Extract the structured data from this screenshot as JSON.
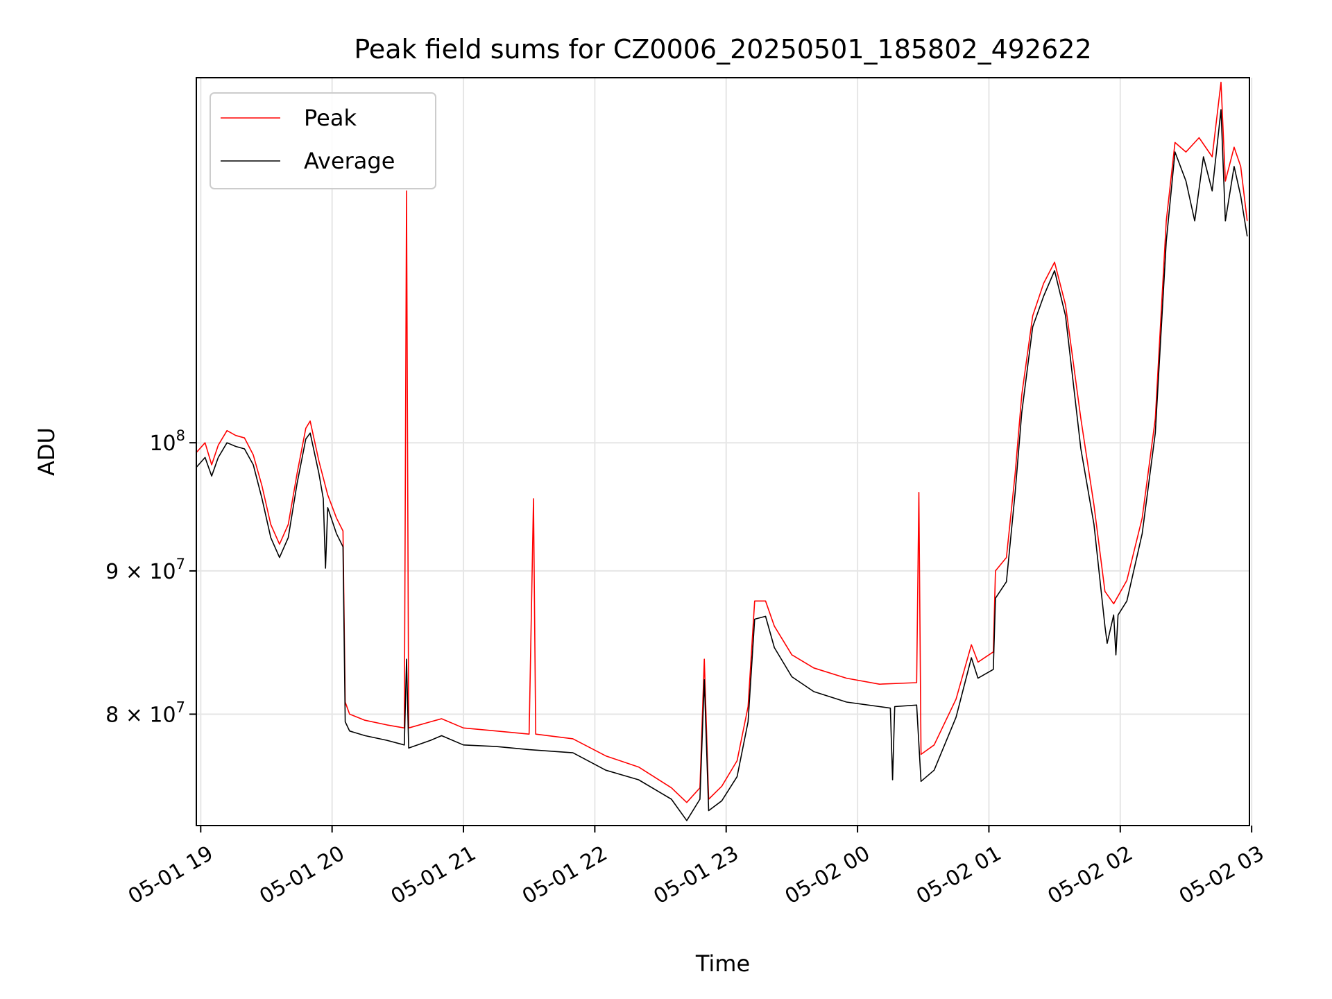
{
  "chart_data": {
    "type": "line",
    "title": "Peak field sums for CZ0006_20250501_185802_492622",
    "xlabel": "Time",
    "ylabel": "ADU",
    "yscale": "log",
    "grid": true,
    "legend_position": "top-left",
    "xlim": [
      "2025-05-01 18:58",
      "2025-05-02 02:59"
    ],
    "ylim": [
      73000000,
      135000000
    ],
    "x_ticks": [
      {
        "t": "2025-05-01 19:00",
        "label": "05-01 19"
      },
      {
        "t": "2025-05-01 20:00",
        "label": "05-01 20"
      },
      {
        "t": "2025-05-01 21:00",
        "label": "05-01 21"
      },
      {
        "t": "2025-05-01 22:00",
        "label": "05-01 22"
      },
      {
        "t": "2025-05-01 23:00",
        "label": "05-01 23"
      },
      {
        "t": "2025-05-02 00:00",
        "label": "05-02 00"
      },
      {
        "t": "2025-05-02 01:00",
        "label": "05-02 01"
      },
      {
        "t": "2025-05-02 02:00",
        "label": "05-02 02"
      },
      {
        "t": "2025-05-02 03:00",
        "label": "05-02 03"
      }
    ],
    "y_ticks": [
      {
        "value": 80000000,
        "label": "8 × 10",
        "exp": "7"
      },
      {
        "value": 90000000,
        "label": "9 × 10",
        "exp": "7"
      },
      {
        "value": 100000000,
        "label": "10",
        "exp": "8"
      }
    ],
    "series": [
      {
        "name": "Peak",
        "color": "#ff0000",
        "points": [
          [
            "2025-05-01 18:58",
            99200000
          ],
          [
            "2025-05-01 19:02",
            100000000
          ],
          [
            "2025-05-01 19:05",
            98200000
          ],
          [
            "2025-05-01 19:08",
            99800000
          ],
          [
            "2025-05-01 19:12",
            101000000
          ],
          [
            "2025-05-01 19:16",
            100600000
          ],
          [
            "2025-05-01 19:20",
            100400000
          ],
          [
            "2025-05-01 19:24",
            99000000
          ],
          [
            "2025-05-01 19:28",
            96500000
          ],
          [
            "2025-05-01 19:32",
            93500000
          ],
          [
            "2025-05-01 19:36",
            92000000
          ],
          [
            "2025-05-01 19:40",
            93500000
          ],
          [
            "2025-05-01 19:44",
            97500000
          ],
          [
            "2025-05-01 19:48",
            101200000
          ],
          [
            "2025-05-01 19:50",
            101800000
          ],
          [
            "2025-05-01 19:54",
            98500000
          ],
          [
            "2025-05-01 19:58",
            95800000
          ],
          [
            "2025-05-01 20:02",
            94000000
          ],
          [
            "2025-05-01 20:05",
            93000000
          ],
          [
            "2025-05-01 20:06",
            80800000
          ],
          [
            "2025-05-01 20:08",
            80000000
          ],
          [
            "2025-05-01 20:15",
            79600000
          ],
          [
            "2025-05-01 20:25",
            79300000
          ],
          [
            "2025-05-01 20:33",
            79100000
          ],
          [
            "2025-05-01 20:34",
            123000000
          ],
          [
            "2025-05-01 20:35",
            79100000
          ],
          [
            "2025-05-01 20:45",
            79500000
          ],
          [
            "2025-05-01 20:50",
            79700000
          ],
          [
            "2025-05-01 21:00",
            79100000
          ],
          [
            "2025-05-01 21:15",
            78900000
          ],
          [
            "2025-05-01 21:30",
            78700000
          ],
          [
            "2025-05-01 21:32",
            95500000
          ],
          [
            "2025-05-01 21:33",
            78700000
          ],
          [
            "2025-05-01 21:50",
            78400000
          ],
          [
            "2025-05-01 22:05",
            77300000
          ],
          [
            "2025-05-01 22:20",
            76600000
          ],
          [
            "2025-05-01 22:35",
            75300000
          ],
          [
            "2025-05-01 22:42",
            74400000
          ],
          [
            "2025-05-01 22:48",
            75300000
          ],
          [
            "2025-05-01 22:50",
            83700000
          ],
          [
            "2025-05-01 22:52",
            74600000
          ],
          [
            "2025-05-01 22:58",
            75400000
          ],
          [
            "2025-05-01 23:05",
            77000000
          ],
          [
            "2025-05-01 23:10",
            80500000
          ],
          [
            "2025-05-01 23:13",
            87800000
          ],
          [
            "2025-05-01 23:18",
            87800000
          ],
          [
            "2025-05-01 23:22",
            86000000
          ],
          [
            "2025-05-01 23:30",
            84000000
          ],
          [
            "2025-05-01 23:40",
            83100000
          ],
          [
            "2025-05-01 23:55",
            82400000
          ],
          [
            "2025-05-02 00:10",
            82000000
          ],
          [
            "2025-05-02 00:27",
            82100000
          ],
          [
            "2025-05-02 00:28",
            96000000
          ],
          [
            "2025-05-02 00:29",
            77400000
          ],
          [
            "2025-05-02 00:35",
            78000000
          ],
          [
            "2025-05-02 00:45",
            81000000
          ],
          [
            "2025-05-02 00:52",
            84700000
          ],
          [
            "2025-05-02 00:55",
            83500000
          ],
          [
            "2025-05-02 01:02",
            84200000
          ],
          [
            "2025-05-02 01:03",
            90000000
          ],
          [
            "2025-05-02 01:08",
            91000000
          ],
          [
            "2025-05-02 01:12",
            97500000
          ],
          [
            "2025-05-02 01:15",
            104000000
          ],
          [
            "2025-05-02 01:20",
            111000000
          ],
          [
            "2025-05-02 01:25",
            114000000
          ],
          [
            "2025-05-02 01:30",
            116000000
          ],
          [
            "2025-05-02 01:35",
            112000000
          ],
          [
            "2025-05-02 01:42",
            102000000
          ],
          [
            "2025-05-02 01:48",
            95000000
          ],
          [
            "2025-05-02 01:53",
            88500000
          ],
          [
            "2025-05-02 01:57",
            87600000
          ],
          [
            "2025-05-02 02:03",
            89300000
          ],
          [
            "2025-05-02 02:10",
            94000000
          ],
          [
            "2025-05-02 02:16",
            102000000
          ],
          [
            "2025-05-02 02:21",
            120000000
          ],
          [
            "2025-05-02 02:25",
            128000000
          ],
          [
            "2025-05-02 02:30",
            127000000
          ],
          [
            "2025-05-02 02:36",
            128500000
          ],
          [
            "2025-05-02 02:42",
            126500000
          ],
          [
            "2025-05-02 02:46",
            134500000
          ],
          [
            "2025-05-02 02:48",
            124000000
          ],
          [
            "2025-05-02 02:52",
            127500000
          ],
          [
            "2025-05-02 02:55",
            125500000
          ],
          [
            "2025-05-02 02:58",
            120000000
          ]
        ]
      },
      {
        "name": "Average",
        "color": "#000000",
        "points": [
          [
            "2025-05-01 18:58",
            98000000
          ],
          [
            "2025-05-01 19:02",
            98800000
          ],
          [
            "2025-05-01 19:05",
            97300000
          ],
          [
            "2025-05-01 19:08",
            98800000
          ],
          [
            "2025-05-01 19:12",
            100000000
          ],
          [
            "2025-05-01 19:16",
            99700000
          ],
          [
            "2025-05-01 19:20",
            99500000
          ],
          [
            "2025-05-01 19:24",
            98200000
          ],
          [
            "2025-05-01 19:28",
            95500000
          ],
          [
            "2025-05-01 19:32",
            92500000
          ],
          [
            "2025-05-01 19:36",
            91000000
          ],
          [
            "2025-05-01 19:40",
            92500000
          ],
          [
            "2025-05-01 19:44",
            96700000
          ],
          [
            "2025-05-01 19:48",
            100300000
          ],
          [
            "2025-05-01 19:50",
            100800000
          ],
          [
            "2025-05-01 19:54",
            97500000
          ],
          [
            "2025-05-01 19:56",
            95500000
          ],
          [
            "2025-05-01 19:57",
            90200000
          ],
          [
            "2025-05-01 19:58",
            94800000
          ],
          [
            "2025-05-01 20:02",
            92800000
          ],
          [
            "2025-05-01 20:05",
            91800000
          ],
          [
            "2025-05-01 20:06",
            79500000
          ],
          [
            "2025-05-01 20:08",
            78900000
          ],
          [
            "2025-05-01 20:15",
            78600000
          ],
          [
            "2025-05-01 20:25",
            78300000
          ],
          [
            "2025-05-01 20:33",
            78000000
          ],
          [
            "2025-05-01 20:34",
            83700000
          ],
          [
            "2025-05-01 20:35",
            77800000
          ],
          [
            "2025-05-01 20:45",
            78300000
          ],
          [
            "2025-05-01 20:50",
            78600000
          ],
          [
            "2025-05-01 21:00",
            78000000
          ],
          [
            "2025-05-01 21:15",
            77900000
          ],
          [
            "2025-05-01 21:30",
            77700000
          ],
          [
            "2025-05-01 21:50",
            77500000
          ],
          [
            "2025-05-01 22:05",
            76400000
          ],
          [
            "2025-05-01 22:20",
            75800000
          ],
          [
            "2025-05-01 22:35",
            74600000
          ],
          [
            "2025-05-01 22:42",
            73300000
          ],
          [
            "2025-05-01 22:48",
            74600000
          ],
          [
            "2025-05-01 22:50",
            82300000
          ],
          [
            "2025-05-01 22:52",
            73900000
          ],
          [
            "2025-05-01 22:58",
            74500000
          ],
          [
            "2025-05-01 23:05",
            76000000
          ],
          [
            "2025-05-01 23:10",
            79500000
          ],
          [
            "2025-05-01 23:13",
            86500000
          ],
          [
            "2025-05-01 23:18",
            86700000
          ],
          [
            "2025-05-01 23:22",
            84500000
          ],
          [
            "2025-05-01 23:30",
            82500000
          ],
          [
            "2025-05-01 23:40",
            81500000
          ],
          [
            "2025-05-01 23:55",
            80800000
          ],
          [
            "2025-05-02 00:10",
            80500000
          ],
          [
            "2025-05-02 00:15",
            80400000
          ],
          [
            "2025-05-02 00:16",
            75800000
          ],
          [
            "2025-05-02 00:17",
            80500000
          ],
          [
            "2025-05-02 00:27",
            80600000
          ],
          [
            "2025-05-02 00:29",
            75700000
          ],
          [
            "2025-05-02 00:35",
            76400000
          ],
          [
            "2025-05-02 00:45",
            79800000
          ],
          [
            "2025-05-02 00:52",
            83800000
          ],
          [
            "2025-05-02 00:55",
            82400000
          ],
          [
            "2025-05-02 01:02",
            83000000
          ],
          [
            "2025-05-02 01:03",
            88000000
          ],
          [
            "2025-05-02 01:08",
            89200000
          ],
          [
            "2025-05-02 01:12",
            96000000
          ],
          [
            "2025-05-02 01:15",
            102500000
          ],
          [
            "2025-05-02 01:20",
            110000000
          ],
          [
            "2025-05-02 01:25",
            112800000
          ],
          [
            "2025-05-02 01:30",
            115200000
          ],
          [
            "2025-05-02 01:35",
            111000000
          ],
          [
            "2025-05-02 01:42",
            99500000
          ],
          [
            "2025-05-02 01:48",
            93500000
          ],
          [
            "2025-05-02 01:53",
            86000000
          ],
          [
            "2025-05-02 01:54",
            84800000
          ],
          [
            "2025-05-02 01:57",
            86800000
          ],
          [
            "2025-05-02 01:58",
            84000000
          ],
          [
            "2025-05-02 01:59",
            86800000
          ],
          [
            "2025-05-02 02:03",
            87800000
          ],
          [
            "2025-05-02 02:10",
            92800000
          ],
          [
            "2025-05-02 02:16",
            100800000
          ],
          [
            "2025-05-02 02:21",
            118000000
          ],
          [
            "2025-05-02 02:25",
            127000000
          ],
          [
            "2025-05-02 02:30",
            124000000
          ],
          [
            "2025-05-02 02:34",
            120000000
          ],
          [
            "2025-05-02 02:38",
            126500000
          ],
          [
            "2025-05-02 02:42",
            123000000
          ],
          [
            "2025-05-02 02:46",
            131500000
          ],
          [
            "2025-05-02 02:48",
            120000000
          ],
          [
            "2025-05-02 02:52",
            125500000
          ],
          [
            "2025-05-02 02:55",
            122500000
          ],
          [
            "2025-05-02 02:58",
            118500000
          ]
        ]
      }
    ]
  }
}
